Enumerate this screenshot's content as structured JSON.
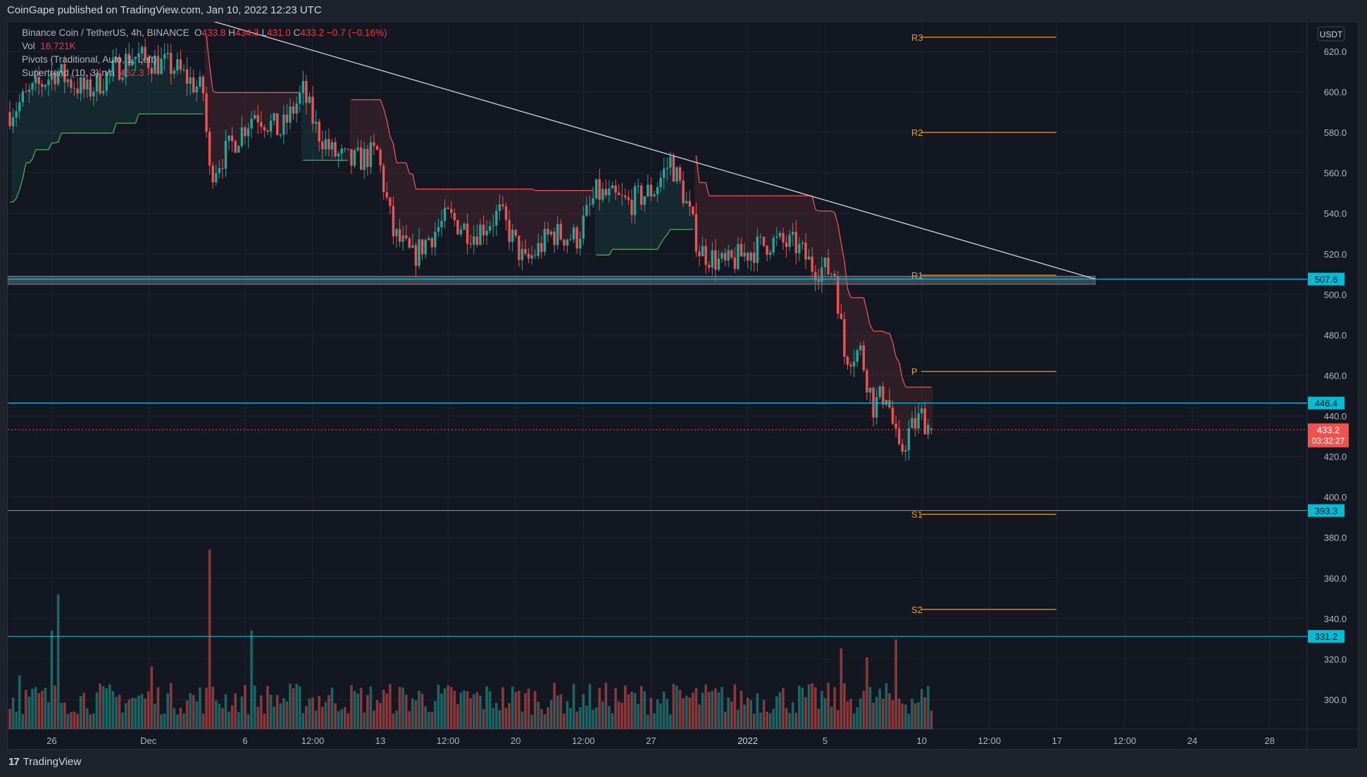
{
  "header": {
    "publisher_line": "CoinGape published on TradingView.com, Jan 10, 2022 12:23 UTC"
  },
  "legend": {
    "symbol": "Binance Coin / TetherUS, 4h, BINANCE",
    "o_label": "O",
    "o": "433.8",
    "h_label": "H",
    "h": "434.3",
    "l_label": "L",
    "l": "431.0",
    "c_label": "C",
    "c": "433.2",
    "change": "−0.7 (−0.16%)",
    "vol_label": "Vol",
    "vol": "16.721K",
    "pivots": "Pivots (Traditional, Auto, 1, Left)",
    "supertrend_label": "Supertrend (10, 3)  n/a",
    "supertrend_value": "462.3"
  },
  "currency_badge": "USDT",
  "price_labels": {
    "support_507": "507.6",
    "support_446": "446.4",
    "support_393": "393.3",
    "support_331": "331.2",
    "last_price": "433.2",
    "countdown": "03:32:27"
  },
  "colors": {
    "up": "#26a69a",
    "down": "#ef5350",
    "level": "#00bcd4",
    "pivot": "#f39c12",
    "bg": "#131722",
    "trend": "#d1d4dc"
  },
  "footer": {
    "brand": "TradingView",
    "logo": "17"
  },
  "chart_data": {
    "type": "candlestick",
    "title": "Binance Coin / TetherUS, 4h, BINANCE",
    "ylabel": "USDT",
    "ylim": [
      290,
      630
    ],
    "y_ticks": [
      620,
      600,
      580,
      560,
      540,
      520,
      500,
      480,
      460,
      440,
      420,
      400,
      380,
      360,
      340,
      320,
      300
    ],
    "x_ticks": [
      "26",
      "Dec",
      "6",
      "12:00",
      "13",
      "12:00",
      "20",
      "12:00",
      "27",
      "2022",
      "5",
      "10",
      "12:00",
      "17",
      "12:00",
      "24",
      "28"
    ],
    "x_tick_bars": [
      13,
      43,
      73,
      94,
      115,
      136,
      157,
      178,
      199,
      229,
      253,
      283,
      304,
      325,
      346,
      367,
      391
    ],
    "close_anchors": [
      [
        0,
        590
      ],
      [
        14,
        610
      ],
      [
        24,
        600
      ],
      [
        38,
        618
      ],
      [
        51,
        612
      ],
      [
        60,
        600
      ],
      [
        62,
        560
      ],
      [
        68,
        572
      ],
      [
        76,
        590
      ],
      [
        84,
        580
      ],
      [
        91,
        600
      ],
      [
        95,
        582
      ],
      [
        100,
        570
      ],
      [
        106,
        565
      ],
      [
        114,
        570
      ],
      [
        119,
        530
      ],
      [
        125,
        518
      ],
      [
        130,
        528
      ],
      [
        136,
        538
      ],
      [
        144,
        530
      ],
      [
        152,
        540
      ],
      [
        160,
        515
      ],
      [
        168,
        530
      ],
      [
        176,
        528
      ],
      [
        182,
        550
      ],
      [
        192,
        545
      ],
      [
        200,
        552
      ],
      [
        205,
        566
      ],
      [
        209,
        550
      ],
      [
        214,
        522
      ],
      [
        222,
        514
      ],
      [
        228,
        520
      ],
      [
        236,
        526
      ],
      [
        244,
        524
      ],
      [
        249,
        514
      ],
      [
        256,
        511
      ],
      [
        259,
        470
      ],
      [
        264,
        472
      ],
      [
        268,
        445
      ],
      [
        272,
        452
      ],
      [
        276,
        420
      ],
      [
        279,
        432
      ],
      [
        283,
        440
      ],
      [
        286,
        433.2
      ]
    ],
    "volume_spikes": [
      [
        15,
        0.75
      ],
      [
        13,
        0.55
      ],
      [
        62,
        1.0
      ],
      [
        75,
        0.55
      ],
      [
        258,
        0.45
      ],
      [
        266,
        0.4
      ],
      [
        275,
        0.5
      ],
      [
        3,
        0.3
      ],
      [
        44,
        0.35
      ]
    ],
    "horizontal_levels": [
      507.6,
      446.4,
      393.3,
      331.2
    ],
    "zone": [
      505,
      509
    ],
    "trendline": {
      "from": [
        0,
        640
      ],
      "to": [
        338,
        507.6
      ],
      "from_bar": 52
    },
    "pivots": [
      {
        "label": "R3",
        "value": 627
      },
      {
        "label": "R2",
        "value": 580
      },
      {
        "label": "R1",
        "value": 509.5
      },
      {
        "label": "P",
        "value": 462
      },
      {
        "label": "S1",
        "value": 391.5
      },
      {
        "label": "S2",
        "value": 344.5
      }
    ],
    "supertrend": {
      "period": 10,
      "factor": 3
    }
  }
}
